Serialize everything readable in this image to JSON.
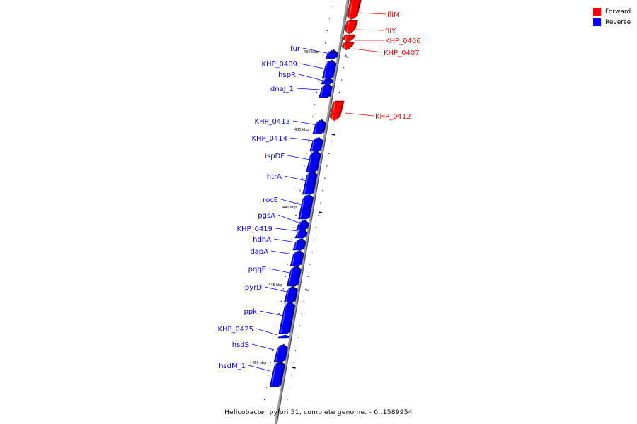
{
  "legend": {
    "forward": {
      "label": "Forward",
      "color": "#ff0000"
    },
    "reverse": {
      "label": "Reverse",
      "color": "#0000ff"
    }
  },
  "caption": "Helicobacter pylori 51, complete genome. - 0..1589954",
  "ticks": [
    "430 kbp",
    "435 kbp",
    "440 kbp",
    "445 kbp",
    "450 kbp"
  ],
  "genes": [
    {
      "name": "fliM",
      "strand": "forward"
    },
    {
      "name": "fliY",
      "strand": "forward"
    },
    {
      "name": "KHP_0406",
      "strand": "forward"
    },
    {
      "name": "KHP_0407",
      "strand": "forward"
    },
    {
      "name": "fur",
      "strand": "reverse"
    },
    {
      "name": "KHP_0409",
      "strand": "reverse"
    },
    {
      "name": "hspR",
      "strand": "reverse"
    },
    {
      "name": "dnaJ_1",
      "strand": "reverse"
    },
    {
      "name": "KHP_0412",
      "strand": "forward"
    },
    {
      "name": "KHP_0413",
      "strand": "reverse"
    },
    {
      "name": "KHP_0414",
      "strand": "reverse"
    },
    {
      "name": "ispDF",
      "strand": "reverse"
    },
    {
      "name": "htrA",
      "strand": "reverse"
    },
    {
      "name": "rocE",
      "strand": "reverse"
    },
    {
      "name": "pgsA",
      "strand": "reverse"
    },
    {
      "name": "KHP_0419",
      "strand": "reverse"
    },
    {
      "name": "hdhA",
      "strand": "reverse"
    },
    {
      "name": "dapA",
      "strand": "reverse"
    },
    {
      "name": "pqqE",
      "strand": "reverse"
    },
    {
      "name": "pyrD",
      "strand": "reverse"
    },
    {
      "name": "ppk",
      "strand": "reverse"
    },
    {
      "name": "KHP_0425",
      "strand": "reverse"
    },
    {
      "name": "hsdS",
      "strand": "reverse"
    },
    {
      "name": "hsdM_1",
      "strand": "reverse"
    }
  ]
}
